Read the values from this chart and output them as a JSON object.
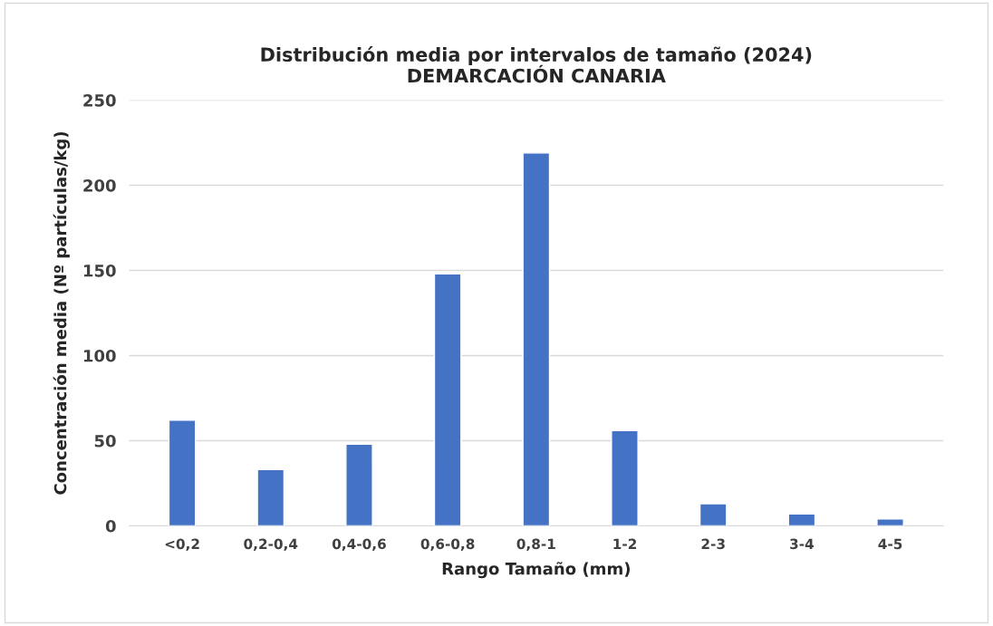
{
  "chart_data": {
    "type": "bar",
    "title": "Distribución media por intervalos de tamaño (2024)\nDEMARCACIÓN CANARIA",
    "xlabel": "Rango Tamaño (mm)",
    "ylabel": "Concentración media (Nº partículas/kg)",
    "categories": [
      "<0,2",
      "0,2-0,4",
      "0,4-0,6",
      "0,6-0,8",
      "0,8-1",
      "1-2",
      "2-3",
      "3-4",
      "4-5"
    ],
    "values": [
      62,
      33,
      48,
      148,
      219,
      56,
      13,
      7,
      4
    ],
    "color": "#4472c4",
    "ylim": [
      0,
      250
    ],
    "yticks": [
      0,
      50,
      100,
      150,
      200,
      250
    ],
    "grid": "y"
  }
}
